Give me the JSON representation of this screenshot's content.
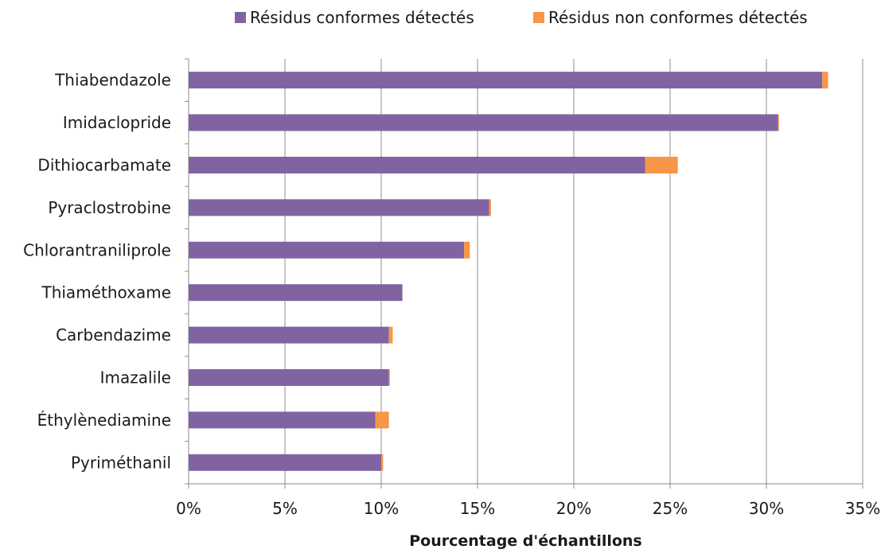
{
  "chart_data": {
    "type": "bar",
    "orientation": "horizontal",
    "stacked": true,
    "categories": [
      "Thiabendazole",
      "Imidaclopride",
      "Dithiocarbamate",
      "Pyraclostrobine",
      "Chlorantraniliprole",
      "Thiaméthoxame",
      "Carbendazime",
      "Imazalile",
      "Éthylènediamine",
      "Pyriméthanil"
    ],
    "series": [
      {
        "name": "Résidus conformes détectés",
        "color": "#8064a2",
        "values": [
          32.9,
          30.6,
          23.7,
          15.6,
          14.3,
          11.1,
          10.4,
          10.4,
          9.7,
          10.0
        ]
      },
      {
        "name": "Résidus non conformes détectés",
        "color": "#f79646",
        "values": [
          0.3,
          0.05,
          1.7,
          0.1,
          0.3,
          0.0,
          0.2,
          0.05,
          0.7,
          0.1
        ]
      }
    ],
    "xlabel": "Pourcentage d'échantillons",
    "xlim": [
      0,
      35
    ],
    "x_ticks": [
      0,
      5,
      10,
      15,
      20,
      25,
      30,
      35
    ],
    "x_tick_labels": [
      "0%",
      "5%",
      "10%",
      "15%",
      "20%",
      "25%",
      "30%",
      "35%"
    ],
    "grid": true,
    "legend_position": "top"
  }
}
